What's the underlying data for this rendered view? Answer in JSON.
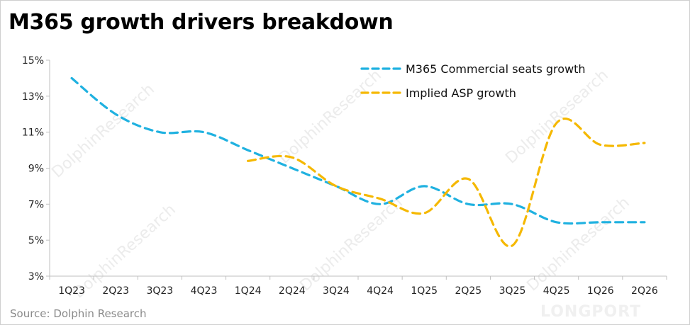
{
  "title": "M365 growth drivers breakdown",
  "source": "Source: Dolphin Research",
  "watermark": "DolphinResearch",
  "brand": "LONGPORT",
  "chart_data": {
    "type": "line",
    "categories": [
      "1Q23",
      "2Q23",
      "3Q23",
      "4Q23",
      "1Q24",
      "2Q24",
      "3Q24",
      "4Q24",
      "1Q25",
      "2Q25",
      "3Q25",
      "4Q25",
      "1Q26",
      "2Q26"
    ],
    "y_ticks": [
      3,
      5,
      7,
      9,
      11,
      13,
      15
    ],
    "y_tick_labels": [
      "3%",
      "5%",
      "7%",
      "9%",
      "11%",
      "13%",
      "15%"
    ],
    "ylim": [
      3,
      15
    ],
    "y_unit": "%",
    "grid": false,
    "legend_position": "top-right",
    "series": [
      {
        "name": "M365 Commercial seats growth",
        "color": "#1fb1e0",
        "style": "dashed",
        "values": [
          14.0,
          12.0,
          11.0,
          11.0,
          10.0,
          9.0,
          8.0,
          7.0,
          8.0,
          7.0,
          7.0,
          6.0,
          6.0,
          6.0
        ]
      },
      {
        "name": "Implied ASP growth",
        "color": "#f5b800",
        "style": "dashed",
        "values": [
          null,
          null,
          null,
          null,
          9.4,
          9.6,
          8.0,
          7.3,
          6.5,
          8.4,
          4.7,
          11.5,
          10.3,
          10.4
        ]
      }
    ]
  }
}
